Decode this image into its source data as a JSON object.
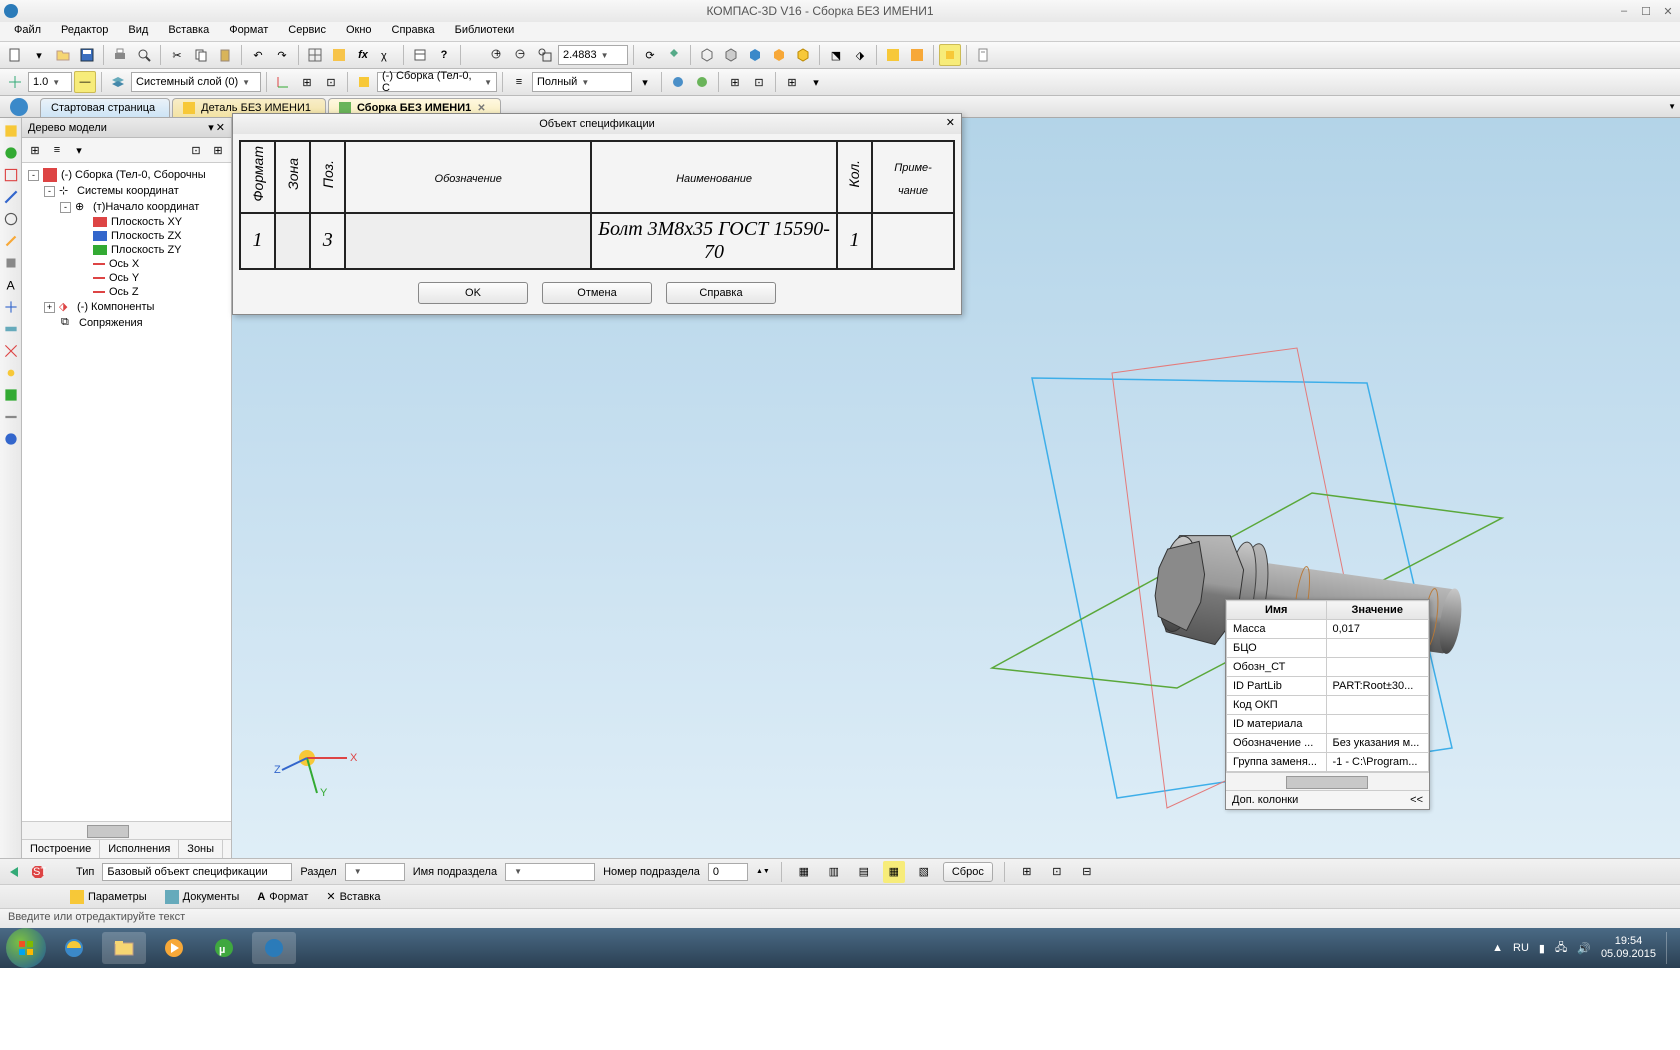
{
  "title": "КОМПАС-3D V16  -  Сборка БЕЗ ИМЕНИ1",
  "menus": [
    "Файл",
    "Редактор",
    "Вид",
    "Вставка",
    "Формат",
    "Сервис",
    "Окно",
    "Справка",
    "Библиотеки"
  ],
  "toolbar1": {
    "zoom": "2.4883"
  },
  "toolbar2": {
    "thickness": "1.0",
    "layer": "Системный слой (0)",
    "assembly": "(-) Сборка (Тел-0, С",
    "mode": "Полный"
  },
  "tabs": [
    {
      "label": "Стартовая страница",
      "active": false,
      "closable": false,
      "home": true
    },
    {
      "label": "Деталь БЕЗ ИМЕНИ1",
      "active": false,
      "closable": false
    },
    {
      "label": "Сборка БЕЗ ИМЕНИ1",
      "active": true,
      "closable": true
    }
  ],
  "panel": {
    "title": "Дерево модели",
    "bottomTabs": [
      "Построение",
      "Исполнения",
      "Зоны"
    ],
    "tree": [
      {
        "indent": 0,
        "exp": "-",
        "icon": "asm",
        "label": "(-) Сборка (Тел-0, Сборочны"
      },
      {
        "indent": 1,
        "exp": "-",
        "icon": "cs",
        "label": "Системы координат"
      },
      {
        "indent": 2,
        "exp": "-",
        "icon": "origin",
        "label": "(т)Начало координат"
      },
      {
        "indent": 3,
        "icon": "plane-red",
        "label": "Плоскость XY"
      },
      {
        "indent": 3,
        "icon": "plane-blue",
        "label": "Плоскость ZX"
      },
      {
        "indent": 3,
        "icon": "plane-green",
        "label": "Плоскость ZY"
      },
      {
        "indent": 3,
        "icon": "axis",
        "label": "Ось X"
      },
      {
        "indent": 3,
        "icon": "axis",
        "label": "Ось Y"
      },
      {
        "indent": 3,
        "icon": "axis",
        "label": "Ось Z"
      },
      {
        "indent": 1,
        "exp": "+",
        "icon": "comp",
        "label": "(-) Компоненты"
      },
      {
        "indent": 1,
        "exp": "",
        "icon": "mate",
        "label": "Сопряжения"
      }
    ]
  },
  "dialog": {
    "title": "Объект спецификации",
    "headers": [
      "Формат",
      "Зона",
      "Поз.",
      "Обозначение",
      "Наименование",
      "Кол.",
      "Приме-\nчание"
    ],
    "row": [
      "1",
      "",
      "3",
      "",
      "Болт 3М8х35 ГОСТ 15590-70",
      "1",
      ""
    ],
    "buttons": [
      "OK",
      "Отмена",
      "Справка"
    ]
  },
  "props": {
    "headers": [
      "Имя",
      "Значение"
    ],
    "rows": [
      [
        "Масса",
        "0,017"
      ],
      [
        "БЦО",
        ""
      ],
      [
        "Обозн_СТ",
        ""
      ],
      [
        "ID PartLib",
        "PART:Root±30..."
      ],
      [
        "Код ОКП",
        ""
      ],
      [
        "ID материала",
        ""
      ],
      [
        "Обозначение ...",
        "Без указания м..."
      ],
      [
        "Группа заменя...",
        "-1 - C:\\Program..."
      ]
    ],
    "footLabel": "Доп. колонки",
    "footChev": "<<"
  },
  "botbar1": {
    "typeLabel": "Тип",
    "typeValue": "Базовый объект спецификации",
    "sectionLabel": "Раздел",
    "sectionValue": "",
    "subLabel": "Имя подраздела",
    "subValue": "",
    "numLabel": "Номер подраздела",
    "numValue": "0",
    "reset": "Сброс"
  },
  "botbar2": [
    "Параметры",
    "Документы",
    "Формат",
    "Вставка"
  ],
  "status": "Введите или отредактируйте текст",
  "taskbar": {
    "lang": "RU",
    "time": "19:54",
    "date": "05.09.2015"
  }
}
